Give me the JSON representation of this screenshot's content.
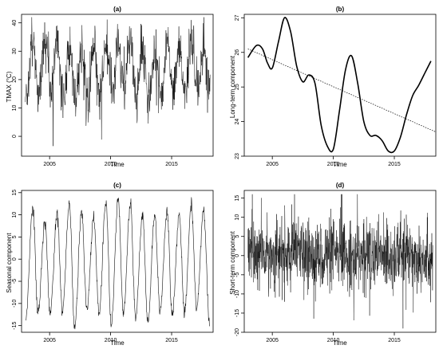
{
  "chart_data": [
    {
      "type": "line",
      "title": "(a)",
      "xlabel": "Time",
      "ylabel": "TMAX (°C)",
      "xlim": [
        2002.7,
        2018.4
      ],
      "ylim": [
        -7,
        43
      ],
      "xticks": [
        2005,
        2010,
        2015
      ],
      "yticks": [
        0,
        10,
        20,
        30,
        40
      ],
      "signal": {
        "start": 2003.0,
        "end": 2018.15,
        "mean": 23.5,
        "trend_amplitude": 1.5,
        "seasonal_amplitude": 9.0,
        "noise_sd": 4.5,
        "points": 730
      },
      "extremes": {
        "max": 42,
        "min": -6
      }
    },
    {
      "type": "line",
      "title": "(b)",
      "xlabel": "Time",
      "ylabel": "Long-term component",
      "xlim": [
        2002.7,
        2018.4
      ],
      "ylim": [
        23,
        27.1
      ],
      "xticks": [
        2005,
        2010,
        2015
      ],
      "yticks": [
        23,
        24,
        25,
        26,
        27
      ],
      "series": [
        {
          "x": [
            2003.0,
            2003.7,
            2004.2,
            2004.6,
            2005.0,
            2005.5,
            2006.0,
            2006.5,
            2007.0,
            2007.5,
            2008.0,
            2008.5,
            2009.0,
            2009.5,
            2010.0,
            2010.5,
            2011.0,
            2011.5,
            2012.0,
            2012.5,
            2013.0,
            2013.5,
            2014.0,
            2014.5,
            2015.0,
            2015.5,
            2016.0,
            2016.5,
            2017.0,
            2017.5,
            2018.0
          ],
          "y": [
            25.85,
            26.2,
            26.1,
            25.7,
            25.55,
            26.3,
            27.0,
            26.6,
            25.6,
            25.15,
            25.35,
            25.1,
            23.9,
            23.3,
            23.2,
            24.3,
            25.5,
            25.9,
            25.1,
            24.0,
            23.6,
            23.6,
            23.45,
            23.15,
            23.15,
            23.55,
            24.2,
            24.75,
            25.05,
            25.4,
            25.75
          ]
        },
        {
          "x": [
            2003.0,
            2018.4
          ],
          "y": [
            26.1,
            23.7
          ]
        }
      ]
    },
    {
      "type": "line",
      "title": "(c)",
      "xlabel": "Time",
      "ylabel": "Seasonal component",
      "xlim": [
        2002.7,
        2018.4
      ],
      "ylim": [
        -16.5,
        15.5
      ],
      "xticks": [
        2005,
        2010,
        2015
      ],
      "yticks": [
        -15,
        -10,
        -5,
        0,
        5,
        10,
        15
      ],
      "peaks": [
        {
          "x": 2003.62,
          "y": 11.5
        },
        {
          "x": 2004.62,
          "y": 8.0
        },
        {
          "x": 2005.62,
          "y": 10.5
        },
        {
          "x": 2006.62,
          "y": 12.5
        },
        {
          "x": 2007.62,
          "y": 10.5
        },
        {
          "x": 2008.62,
          "y": 9.0
        },
        {
          "x": 2009.62,
          "y": 13.0
        },
        {
          "x": 2010.62,
          "y": 13.5
        },
        {
          "x": 2011.62,
          "y": 12.5
        },
        {
          "x": 2012.62,
          "y": 10.0
        },
        {
          "x": 2013.62,
          "y": 10.0
        },
        {
          "x": 2014.62,
          "y": 11.0
        },
        {
          "x": 2015.62,
          "y": 10.0
        },
        {
          "x": 2016.62,
          "y": 12.0
        },
        {
          "x": 2017.62,
          "y": 11.0
        }
      ],
      "troughs": [
        {
          "x": 2003.05,
          "y": -13.5
        },
        {
          "x": 2004.05,
          "y": -12.0
        },
        {
          "x": 2005.05,
          "y": -12.0
        },
        {
          "x": 2006.05,
          "y": -11.5
        },
        {
          "x": 2007.05,
          "y": -15.5
        },
        {
          "x": 2008.05,
          "y": -11.0
        },
        {
          "x": 2009.05,
          "y": -12.0
        },
        {
          "x": 2010.05,
          "y": -15.0
        },
        {
          "x": 2011.05,
          "y": -12.5
        },
        {
          "x": 2012.05,
          "y": -13.0
        },
        {
          "x": 2013.05,
          "y": -14.5
        },
        {
          "x": 2014.05,
          "y": -12.0
        },
        {
          "x": 2015.05,
          "y": -13.0
        },
        {
          "x": 2016.05,
          "y": -12.5
        },
        {
          "x": 2017.05,
          "y": -11.5
        },
        {
          "x": 2018.12,
          "y": -15.0
        }
      ]
    },
    {
      "type": "line",
      "title": "(d)",
      "xlabel": "Time",
      "ylabel": "Short-term component",
      "xlim": [
        2002.7,
        2018.4
      ],
      "ylim": [
        -20,
        17
      ],
      "xticks": [
        2005,
        2010,
        2015
      ],
      "yticks": [
        -20,
        -15,
        -10,
        -5,
        0,
        5,
        10,
        15
      ],
      "signal": {
        "start": 2003.0,
        "end": 2018.15,
        "mean": 0,
        "noise_sd": 4.5,
        "points": 1000
      },
      "extremes": {
        "max": 16,
        "min": -19
      }
    }
  ]
}
